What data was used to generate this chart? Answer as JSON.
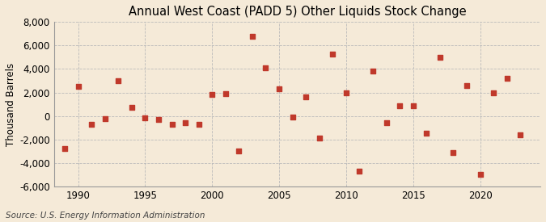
{
  "title": "Annual West Coast (PADD 5) Other Liquids Stock Change",
  "ylabel": "Thousand Barrels",
  "source": "Source: U.S. Energy Information Administration",
  "years": [
    1989,
    1990,
    1991,
    1992,
    1993,
    1994,
    1995,
    1996,
    1997,
    1998,
    1999,
    2000,
    2001,
    2002,
    2003,
    2004,
    2005,
    2006,
    2007,
    2008,
    2009,
    2010,
    2011,
    2012,
    2013,
    2014,
    2015,
    2016,
    2017,
    2018,
    2019,
    2020,
    2021,
    2022,
    2023
  ],
  "values": [
    -2800,
    2500,
    -700,
    -200,
    3000,
    700,
    -150,
    -300,
    -700,
    -600,
    -700,
    1800,
    1900,
    -3000,
    6800,
    4100,
    2300,
    -100,
    1600,
    -1900,
    5300,
    2000,
    -4700,
    3800,
    -600,
    900,
    900,
    -1500,
    5000,
    -3100,
    2600,
    -5000,
    2000,
    3200,
    -1600
  ],
  "marker_color": "#c0392b",
  "marker_size": 4,
  "bg_color": "#f5ead8",
  "plot_bg_color": "#f5ead8",
  "grid_color": "#bbbbbb",
  "ylim": [
    -6000,
    8000
  ],
  "yticks": [
    -6000,
    -4000,
    -2000,
    0,
    2000,
    4000,
    6000,
    8000
  ],
  "xlim": [
    1988.2,
    2024.5
  ],
  "xticks": [
    1990,
    1995,
    2000,
    2005,
    2010,
    2015,
    2020
  ],
  "title_fontsize": 10.5,
  "label_fontsize": 8.5,
  "tick_fontsize": 8.5,
  "source_fontsize": 7.5
}
